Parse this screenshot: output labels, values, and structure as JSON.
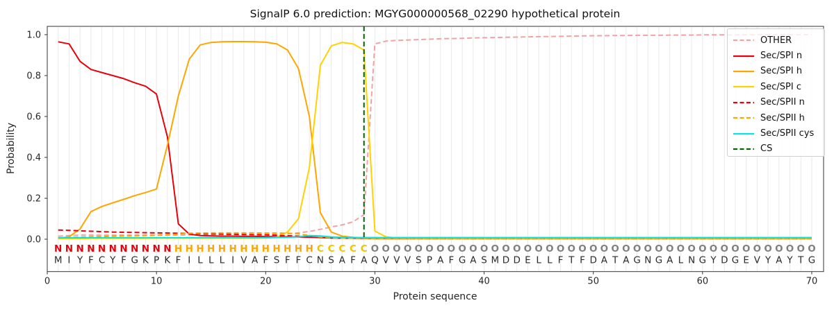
{
  "title": "SignalP 6.0 prediction: MGYG000000568_02290 hypothetical protein",
  "label_colors": {
    "N": "#e8000b",
    "H": "#ffa500",
    "C": "#f0c400",
    "O": "#7f7f7f"
  },
  "sequence_color": "#2b2b2b",
  "grid_color": "#e9e9e9",
  "spine_color": "#333333",
  "chart_data": {
    "type": "line",
    "title": "SignalP 6.0 prediction: MGYG000000568_02290 hypothetical protein",
    "xlabel": "Protein sequence",
    "ylabel": "Probability",
    "xticks": [
      0,
      10,
      20,
      30,
      40,
      50,
      60,
      70
    ],
    "yticks": [
      0.0,
      0.2,
      0.4,
      0.6,
      0.8,
      1.0
    ],
    "xlim": [
      0,
      71.1
    ],
    "ylim": [
      -0.158,
      1.041
    ],
    "grid": "vertical-per-residue",
    "legend_position": "upper-right",
    "x": [
      1,
      2,
      3,
      4,
      5,
      6,
      7,
      8,
      9,
      10,
      11,
      12,
      13,
      14,
      15,
      16,
      17,
      18,
      19,
      20,
      21,
      22,
      23,
      24,
      25,
      26,
      27,
      28,
      29,
      30,
      31,
      32,
      33,
      34,
      35,
      36,
      37,
      38,
      39,
      40,
      41,
      42,
      43,
      44,
      45,
      46,
      47,
      48,
      49,
      50,
      51,
      52,
      53,
      54,
      55,
      56,
      57,
      58,
      59,
      60,
      61,
      62,
      63,
      64,
      65,
      66,
      67,
      68,
      69,
      70
    ],
    "sequence": "MIYFCYFGKPKFILLLIVAFSFFCNSAFAQVVVSPAFGASMDDELLFTFDATAGNGALNGYDGEVYAYTG",
    "region_labels": "NNNNNNNNNNNHHHHHHHHHHHHHCCCCCOOOOOOOOOOOOOOOOOOOOOOOOOOOOOOOOOOOOOOOOO",
    "series": [
      {
        "name": "OTHER",
        "color": "#f2a2a2",
        "dash": "dashed",
        "values": [
          0.015,
          0.018,
          0.02,
          0.02,
          0.02,
          0.02,
          0.02,
          0.02,
          0.02,
          0.02,
          0.02,
          0.02,
          0.021,
          0.021,
          0.022,
          0.022,
          0.022,
          0.023,
          0.023,
          0.024,
          0.025,
          0.027,
          0.031,
          0.038,
          0.048,
          0.06,
          0.07,
          0.085,
          0.12,
          0.955,
          0.968,
          0.972,
          0.974,
          0.976,
          0.978,
          0.98,
          0.981,
          0.982,
          0.984,
          0.985,
          0.986,
          0.987,
          0.988,
          0.989,
          0.99,
          0.991,
          0.992,
          0.993,
          0.994,
          0.995,
          0.995,
          0.996,
          0.996,
          0.997,
          0.997,
          0.997,
          0.998,
          0.998,
          0.998,
          0.999,
          0.999,
          0.999,
          0.999,
          1.0,
          1.0,
          1.0,
          1.0,
          1.0,
          1.0,
          1.0
        ]
      },
      {
        "name": "Sec/SPI n",
        "color": "#e8000b",
        "dash": "solid",
        "values": [
          0.965,
          0.955,
          0.87,
          0.83,
          0.815,
          0.8,
          0.785,
          0.765,
          0.748,
          0.71,
          0.5,
          0.075,
          0.025,
          0.018,
          0.016,
          0.015,
          0.015,
          0.014,
          0.014,
          0.013,
          0.013,
          0.012,
          0.011,
          0.01,
          0.008,
          0.006,
          0.005,
          0.005,
          0.004,
          0.003,
          0.003,
          0.003,
          0.003,
          0.003,
          0.003,
          0.003,
          0.003,
          0.003,
          0.003,
          0.003,
          0.003,
          0.003,
          0.003,
          0.003,
          0.003,
          0.003,
          0.003,
          0.003,
          0.003,
          0.003,
          0.003,
          0.003,
          0.003,
          0.003,
          0.003,
          0.003,
          0.003,
          0.003,
          0.003,
          0.003,
          0.003,
          0.003,
          0.003,
          0.003,
          0.003,
          0.003,
          0.003,
          0.003,
          0.003,
          0.003
        ]
      },
      {
        "name": "Sec/SPI h",
        "color": "#ffa500",
        "dash": "solid",
        "values": [
          0.004,
          0.012,
          0.05,
          0.135,
          0.16,
          0.178,
          0.195,
          0.213,
          0.228,
          0.245,
          0.46,
          0.7,
          0.88,
          0.95,
          0.962,
          0.965,
          0.966,
          0.966,
          0.965,
          0.963,
          0.955,
          0.925,
          0.835,
          0.6,
          0.13,
          0.035,
          0.015,
          0.009,
          0.006,
          0.004,
          0.004,
          0.004,
          0.004,
          0.004,
          0.004,
          0.004,
          0.004,
          0.004,
          0.004,
          0.004,
          0.004,
          0.004,
          0.004,
          0.004,
          0.004,
          0.004,
          0.004,
          0.004,
          0.004,
          0.004,
          0.004,
          0.004,
          0.004,
          0.004,
          0.004,
          0.004,
          0.004,
          0.004,
          0.004,
          0.004,
          0.004,
          0.004,
          0.004,
          0.004,
          0.004,
          0.004,
          0.004,
          0.004,
          0.004,
          0.004
        ]
      },
      {
        "name": "Sec/SPI c",
        "color": "#ffd200",
        "dash": "solid",
        "values": [
          0.003,
          0.003,
          0.003,
          0.004,
          0.004,
          0.004,
          0.004,
          0.004,
          0.004,
          0.005,
          0.005,
          0.005,
          0.005,
          0.005,
          0.005,
          0.005,
          0.005,
          0.005,
          0.005,
          0.006,
          0.01,
          0.035,
          0.1,
          0.35,
          0.85,
          0.945,
          0.962,
          0.955,
          0.925,
          0.04,
          0.012,
          0.006,
          0.005,
          0.004,
          0.004,
          0.004,
          0.004,
          0.004,
          0.004,
          0.004,
          0.004,
          0.004,
          0.004,
          0.004,
          0.004,
          0.004,
          0.004,
          0.004,
          0.004,
          0.004,
          0.004,
          0.004,
          0.004,
          0.004,
          0.004,
          0.004,
          0.004,
          0.004,
          0.004,
          0.004,
          0.004,
          0.004,
          0.004,
          0.004,
          0.004,
          0.004,
          0.004,
          0.004,
          0.004,
          0.004
        ]
      },
      {
        "name": "Sec/SPII n",
        "color": "#e8000b",
        "dash": "dashed",
        "values": [
          0.045,
          0.043,
          0.041,
          0.039,
          0.037,
          0.035,
          0.034,
          0.033,
          0.032,
          0.031,
          0.03,
          0.029,
          0.028,
          0.027,
          0.026,
          0.025,
          0.024,
          0.023,
          0.022,
          0.021,
          0.019,
          0.017,
          0.015,
          0.012,
          0.009,
          0.007,
          0.006,
          0.005,
          0.004,
          0.004,
          0.003,
          0.003,
          0.003,
          0.003,
          0.003,
          0.003,
          0.003,
          0.003,
          0.003,
          0.003,
          0.003,
          0.003,
          0.003,
          0.003,
          0.003,
          0.003,
          0.003,
          0.003,
          0.003,
          0.003,
          0.003,
          0.003,
          0.003,
          0.003,
          0.003,
          0.003,
          0.003,
          0.003,
          0.003,
          0.003,
          0.003,
          0.003,
          0.003,
          0.003,
          0.003,
          0.003,
          0.003,
          0.003,
          0.003,
          0.003
        ]
      },
      {
        "name": "Sec/SPII h",
        "color": "#ffa500",
        "dash": "dashed",
        "values": [
          0.006,
          0.008,
          0.01,
          0.012,
          0.013,
          0.015,
          0.016,
          0.017,
          0.018,
          0.019,
          0.021,
          0.025,
          0.029,
          0.03,
          0.031,
          0.031,
          0.031,
          0.031,
          0.031,
          0.03,
          0.03,
          0.029,
          0.026,
          0.018,
          0.011,
          0.007,
          0.005,
          0.004,
          0.004,
          0.003,
          0.003,
          0.003,
          0.003,
          0.003,
          0.003,
          0.003,
          0.003,
          0.003,
          0.003,
          0.003,
          0.003,
          0.003,
          0.003,
          0.003,
          0.003,
          0.003,
          0.003,
          0.003,
          0.003,
          0.003,
          0.003,
          0.003,
          0.003,
          0.003,
          0.003,
          0.003,
          0.003,
          0.003,
          0.003,
          0.003,
          0.003,
          0.003,
          0.003,
          0.003,
          0.003,
          0.003,
          0.003,
          0.003,
          0.003,
          0.003
        ]
      },
      {
        "name": "Sec/SPII cys",
        "color": "#06e3e6",
        "dash": "solid",
        "values": [
          0.007,
          0.007,
          0.007,
          0.007,
          0.007,
          0.007,
          0.007,
          0.007,
          0.007,
          0.007,
          0.007,
          0.007,
          0.007,
          0.007,
          0.007,
          0.007,
          0.007,
          0.007,
          0.007,
          0.007,
          0.008,
          0.009,
          0.012,
          0.018,
          0.016,
          0.011,
          0.009,
          0.008,
          0.008,
          0.008,
          0.008,
          0.008,
          0.008,
          0.008,
          0.008,
          0.008,
          0.008,
          0.008,
          0.008,
          0.008,
          0.008,
          0.008,
          0.008,
          0.008,
          0.008,
          0.008,
          0.008,
          0.008,
          0.008,
          0.008,
          0.008,
          0.008,
          0.008,
          0.008,
          0.008,
          0.008,
          0.008,
          0.008,
          0.008,
          0.008,
          0.008,
          0.008,
          0.008,
          0.008,
          0.008,
          0.008,
          0.008,
          0.008,
          0.008,
          0.008
        ]
      }
    ],
    "cs_marker": {
      "label": "CS",
      "position": 29,
      "color": "#006400",
      "dash": "dashed"
    }
  }
}
